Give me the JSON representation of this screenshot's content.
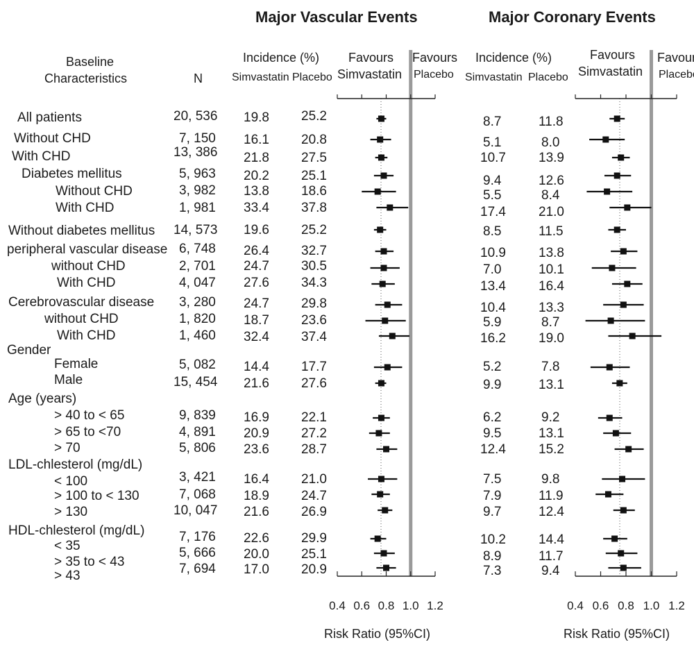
{
  "chart_data": [
    {
      "type": "forest",
      "title": "Major Vascular Events",
      "incidence_header": "Incidence (%)",
      "col_treatment": "Simvastatin",
      "col_placebo": "Placebo",
      "favours_left": [
        "Favours",
        "Simvastatin"
      ],
      "favours_right": [
        "Favours",
        "Placebo"
      ],
      "xlabel": "Risk Ratio (95%CI)",
      "xticks": [
        "0.4",
        "0.6",
        "0.8",
        "1.0",
        "1.2"
      ],
      "xlim": [
        0.4,
        1.2
      ],
      "reference_line": 1.0,
      "rows": [
        {
          "simva": "19.8",
          "placebo": "25.2",
          "rr": 0.76,
          "lo": 0.72,
          "hi": 0.8
        },
        {
          "simva": "16.1",
          "placebo": "20.8",
          "rr": 0.75,
          "lo": 0.67,
          "hi": 0.84
        },
        {
          "simva": "21.8",
          "placebo": "27.5",
          "rr": 0.76,
          "lo": 0.71,
          "hi": 0.81
        },
        {
          "simva": "20.2",
          "placebo": "25.1",
          "rr": 0.78,
          "lo": 0.7,
          "hi": 0.86
        },
        {
          "simva": "13.8",
          "placebo": "18.6",
          "rr": 0.73,
          "lo": 0.6,
          "hi": 0.88
        },
        {
          "simva": "33.4",
          "placebo": "37.8",
          "rr": 0.83,
          "lo": 0.72,
          "hi": 0.98
        },
        {
          "simva": "19.6",
          "placebo": "25.2",
          "rr": 0.75,
          "lo": 0.7,
          "hi": 0.8
        },
        {
          "simva": "26.4",
          "placebo": "32.7",
          "rr": 0.78,
          "lo": 0.71,
          "hi": 0.86
        },
        {
          "simva": "24.7",
          "placebo": "30.5",
          "rr": 0.78,
          "lo": 0.67,
          "hi": 0.91
        },
        {
          "simva": "27.6",
          "placebo": "34.3",
          "rr": 0.77,
          "lo": 0.68,
          "hi": 0.87
        },
        {
          "simva": "24.7",
          "placebo": "29.8",
          "rr": 0.81,
          "lo": 0.71,
          "hi": 0.93
        },
        {
          "simva": "18.7",
          "placebo": "23.6",
          "rr": 0.79,
          "lo": 0.63,
          "hi": 0.96
        },
        {
          "simva": "32.4",
          "placebo": "37.4",
          "rr": 0.85,
          "lo": 0.74,
          "hi": 0.99
        },
        {
          "simva": "14.4",
          "placebo": "17.7",
          "rr": 0.81,
          "lo": 0.7,
          "hi": 0.93
        },
        {
          "simva": "21.6",
          "placebo": "27.6",
          "rr": 0.76,
          "lo": 0.71,
          "hi": 0.8
        },
        {
          "simva": "16.9",
          "placebo": "22.1",
          "rr": 0.76,
          "lo": 0.69,
          "hi": 0.83
        },
        {
          "simva": "20.9",
          "placebo": "27.2",
          "rr": 0.74,
          "lo": 0.66,
          "hi": 0.83
        },
        {
          "simva": "23.6",
          "placebo": "28.7",
          "rr": 0.8,
          "lo": 0.72,
          "hi": 0.89
        },
        {
          "simva": "16.4",
          "placebo": "21.0",
          "rr": 0.76,
          "lo": 0.65,
          "hi": 0.89
        },
        {
          "simva": "18.9",
          "placebo": "24.7",
          "rr": 0.75,
          "lo": 0.68,
          "hi": 0.83
        },
        {
          "simva": "21.6",
          "placebo": "26.9",
          "rr": 0.79,
          "lo": 0.73,
          "hi": 0.85
        },
        {
          "simva": "22.6",
          "placebo": "29.9",
          "rr": 0.73,
          "lo": 0.67,
          "hi": 0.8
        },
        {
          "simva": "20.0",
          "placebo": "25.1",
          "rr": 0.78,
          "lo": 0.7,
          "hi": 0.87
        },
        {
          "simva": "17.0",
          "placebo": "20.9",
          "rr": 0.8,
          "lo": 0.72,
          "hi": 0.88
        }
      ]
    },
    {
      "type": "forest",
      "title": "Major Coronary Events",
      "incidence_header": "Incidence (%)",
      "col_treatment": "Simvastatin",
      "col_placebo": "Placebo",
      "favours_left": [
        "Favours",
        "Simvastatin"
      ],
      "favours_right": [
        "Favours",
        "Placebo"
      ],
      "xlabel": "Risk Ratio (95%CI)",
      "xticks": [
        "0.4",
        "0.6",
        "0.8",
        "1.0",
        "1.2"
      ],
      "xlim": [
        0.4,
        1.2
      ],
      "reference_line": 1.0,
      "rows": [
        {
          "simva": "8.7",
          "placebo": "11.8",
          "rr": 0.73,
          "lo": 0.67,
          "hi": 0.79
        },
        {
          "simva": "5.1",
          "placebo": "8.0",
          "rr": 0.64,
          "lo": 0.51,
          "hi": 0.79
        },
        {
          "simva": "10.7",
          "placebo": "13.9",
          "rr": 0.76,
          "lo": 0.69,
          "hi": 0.83
        },
        {
          "simva": "9.4",
          "placebo": "12.6",
          "rr": 0.73,
          "lo": 0.63,
          "hi": 0.84
        },
        {
          "simva": "5.5",
          "placebo": "8.4",
          "rr": 0.65,
          "lo": 0.49,
          "hi": 0.85
        },
        {
          "simva": "17.4",
          "placebo": "21.0",
          "rr": 0.81,
          "lo": 0.67,
          "hi": 1.0
        },
        {
          "simva": "8.5",
          "placebo": "11.5",
          "rr": 0.73,
          "lo": 0.66,
          "hi": 0.8
        },
        {
          "simva": "10.9",
          "placebo": "13.8",
          "rr": 0.78,
          "lo": 0.68,
          "hi": 0.89
        },
        {
          "simva": "7.0",
          "placebo": "10.1",
          "rr": 0.69,
          "lo": 0.53,
          "hi": 0.88
        },
        {
          "simva": "13.4",
          "placebo": "16.4",
          "rr": 0.81,
          "lo": 0.69,
          "hi": 0.93
        },
        {
          "simva": "10.4",
          "placebo": "13.3",
          "rr": 0.78,
          "lo": 0.62,
          "hi": 0.94
        },
        {
          "simva": "5.9",
          "placebo": "8.7",
          "rr": 0.68,
          "lo": 0.48,
          "hi": 0.95
        },
        {
          "simva": "16.2",
          "placebo": "19.0",
          "rr": 0.85,
          "lo": 0.66,
          "hi": 1.08
        },
        {
          "simva": "5.2",
          "placebo": "7.8",
          "rr": 0.67,
          "lo": 0.52,
          "hi": 0.83
        },
        {
          "simva": "9.9",
          "placebo": "13.1",
          "rr": 0.75,
          "lo": 0.69,
          "hi": 0.81
        },
        {
          "simva": "6.2",
          "placebo": "9.2",
          "rr": 0.67,
          "lo": 0.58,
          "hi": 0.77
        },
        {
          "simva": "9.5",
          "placebo": "13.1",
          "rr": 0.72,
          "lo": 0.62,
          "hi": 0.84
        },
        {
          "simva": "12.4",
          "placebo": "15.2",
          "rr": 0.82,
          "lo": 0.71,
          "hi": 0.94
        },
        {
          "simva": "7.5",
          "placebo": "9.8",
          "rr": 0.77,
          "lo": 0.61,
          "hi": 0.95
        },
        {
          "simva": "7.9",
          "placebo": "11.9",
          "rr": 0.66,
          "lo": 0.56,
          "hi": 0.78
        },
        {
          "simva": "9.7",
          "placebo": "12.4",
          "rr": 0.78,
          "lo": 0.7,
          "hi": 0.87
        },
        {
          "simva": "10.2",
          "placebo": "14.4",
          "rr": 0.71,
          "lo": 0.62,
          "hi": 0.81
        },
        {
          "simva": "8.9",
          "placebo": "11.7",
          "rr": 0.76,
          "lo": 0.64,
          "hi": 0.89
        },
        {
          "simva": "7.3",
          "placebo": "9.4",
          "rr": 0.78,
          "lo": 0.66,
          "hi": 0.92
        }
      ]
    }
  ],
  "table": {
    "col_baseline": "Baseline",
    "col_characteristics": "Characteristics",
    "col_n": "N",
    "groups": [
      {
        "label": "Gender"
      },
      {
        "label": "Age (years)"
      },
      {
        "label": "LDL-chlesterol (mg/dL)"
      },
      {
        "label": "HDL-chlesterol (mg/dL)"
      }
    ],
    "rows": [
      {
        "label": "All patients",
        "n": "20, 536"
      },
      {
        "label": "Without CHD",
        "n": "7, 150"
      },
      {
        "label": "With CHD",
        "n": "13, 386"
      },
      {
        "label": "Diabetes mellitus",
        "n": "5, 963"
      },
      {
        "label": "Without CHD",
        "n": "3, 982"
      },
      {
        "label": "With CHD",
        "n": "1, 981"
      },
      {
        "label": "Without diabetes mellitus",
        "n": "14, 573"
      },
      {
        "label": "peripheral vascular disease",
        "n": "6, 748"
      },
      {
        "label": "without CHD",
        "n": "2, 701"
      },
      {
        "label": "With CHD",
        "n": "4, 047"
      },
      {
        "label": "Cerebrovascular disease",
        "n": "3, 280"
      },
      {
        "label": "without CHD",
        "n": "1, 820"
      },
      {
        "label": "With CHD",
        "n": "1, 460"
      },
      {
        "label": "Female",
        "n": "5, 082"
      },
      {
        "label": "Male",
        "n": "15, 454"
      },
      {
        "label": "> 40 to < 65",
        "n": "9, 839"
      },
      {
        "label": "> 65 to <70",
        "n": "4, 891"
      },
      {
        "label": "> 70",
        "n": "5, 806"
      },
      {
        "label": "< 100",
        "n": "3, 421"
      },
      {
        "label": "> 100 to < 130",
        "n": "7, 068"
      },
      {
        "label": "> 130",
        "n": "10, 047"
      },
      {
        "label": "< 35",
        "n": "7, 176"
      },
      {
        "label": "> 35 to < 43",
        "n": "5, 666"
      },
      {
        "label": "> 43",
        "n": "7, 694"
      }
    ]
  }
}
